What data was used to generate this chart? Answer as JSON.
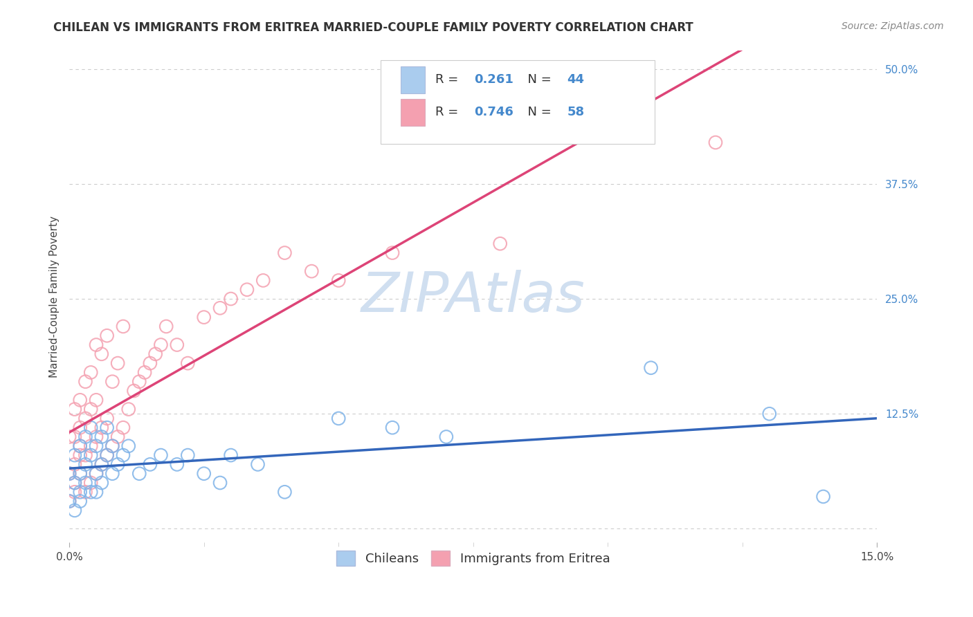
{
  "title": "CHILEAN VS IMMIGRANTS FROM ERITREA MARRIED-COUPLE FAMILY POVERTY CORRELATION CHART",
  "source": "Source: ZipAtlas.com",
  "ylabel": "Married-Couple Family Poverty",
  "xmin": 0.0,
  "xmax": 0.15,
  "ymin": -0.015,
  "ymax": 0.52,
  "ytick_positions": [
    0.0,
    0.125,
    0.25,
    0.375,
    0.5
  ],
  "ytick_labels": [
    "",
    "12.5%",
    "25.0%",
    "37.5%",
    "50.0%"
  ],
  "grid_color": "#cccccc",
  "background_color": "#ffffff",
  "watermark_text": "ZIPAtlas",
  "watermark_color": "#d0dff0",
  "scatter_color1": "#7fb3e8",
  "scatter_color2": "#f4a0b0",
  "line_color1": "#3366bb",
  "line_color2": "#dd4477",
  "legend_color1": "#aaccee",
  "legend_color2": "#f4a0b0",
  "label1": "Chileans",
  "label2": "Immigrants from Eritrea",
  "R1": 0.261,
  "N1": 44,
  "R2": 0.746,
  "N2": 58,
  "title_fontsize": 12,
  "axis_label_fontsize": 11,
  "tick_fontsize": 11,
  "legend_fontsize": 13,
  "source_fontsize": 10,
  "chilean_x": [
    0.0,
    0.0,
    0.001,
    0.001,
    0.001,
    0.002,
    0.002,
    0.002,
    0.002,
    0.003,
    0.003,
    0.003,
    0.004,
    0.004,
    0.004,
    0.005,
    0.005,
    0.005,
    0.006,
    0.006,
    0.006,
    0.007,
    0.007,
    0.008,
    0.008,
    0.009,
    0.01,
    0.011,
    0.013,
    0.015,
    0.017,
    0.02,
    0.022,
    0.025,
    0.028,
    0.03,
    0.035,
    0.04,
    0.05,
    0.06,
    0.07,
    0.108,
    0.13,
    0.14
  ],
  "chilean_y": [
    0.03,
    0.06,
    0.02,
    0.05,
    0.08,
    0.03,
    0.06,
    0.09,
    0.04,
    0.07,
    0.1,
    0.05,
    0.04,
    0.08,
    0.11,
    0.06,
    0.09,
    0.04,
    0.07,
    0.1,
    0.05,
    0.08,
    0.11,
    0.06,
    0.09,
    0.07,
    0.08,
    0.09,
    0.06,
    0.07,
    0.08,
    0.07,
    0.08,
    0.06,
    0.05,
    0.08,
    0.07,
    0.04,
    0.12,
    0.11,
    0.1,
    0.175,
    0.125,
    0.035
  ],
  "eritrean_x": [
    0.0,
    0.0,
    0.0,
    0.001,
    0.001,
    0.001,
    0.001,
    0.001,
    0.002,
    0.002,
    0.002,
    0.002,
    0.002,
    0.003,
    0.003,
    0.003,
    0.003,
    0.004,
    0.004,
    0.004,
    0.004,
    0.005,
    0.005,
    0.005,
    0.005,
    0.006,
    0.006,
    0.006,
    0.007,
    0.007,
    0.007,
    0.008,
    0.008,
    0.009,
    0.009,
    0.01,
    0.01,
    0.011,
    0.012,
    0.013,
    0.014,
    0.015,
    0.016,
    0.017,
    0.018,
    0.02,
    0.022,
    0.025,
    0.028,
    0.03,
    0.033,
    0.036,
    0.04,
    0.045,
    0.05,
    0.06,
    0.08,
    0.12
  ],
  "eritrean_y": [
    0.03,
    0.06,
    0.1,
    0.04,
    0.07,
    0.1,
    0.13,
    0.05,
    0.08,
    0.11,
    0.14,
    0.06,
    0.09,
    0.04,
    0.08,
    0.12,
    0.16,
    0.05,
    0.09,
    0.13,
    0.17,
    0.06,
    0.1,
    0.14,
    0.2,
    0.07,
    0.11,
    0.19,
    0.08,
    0.12,
    0.21,
    0.09,
    0.16,
    0.1,
    0.18,
    0.11,
    0.22,
    0.13,
    0.15,
    0.16,
    0.17,
    0.18,
    0.19,
    0.2,
    0.22,
    0.2,
    0.18,
    0.23,
    0.24,
    0.25,
    0.26,
    0.27,
    0.3,
    0.28,
    0.27,
    0.3,
    0.31,
    0.42
  ]
}
